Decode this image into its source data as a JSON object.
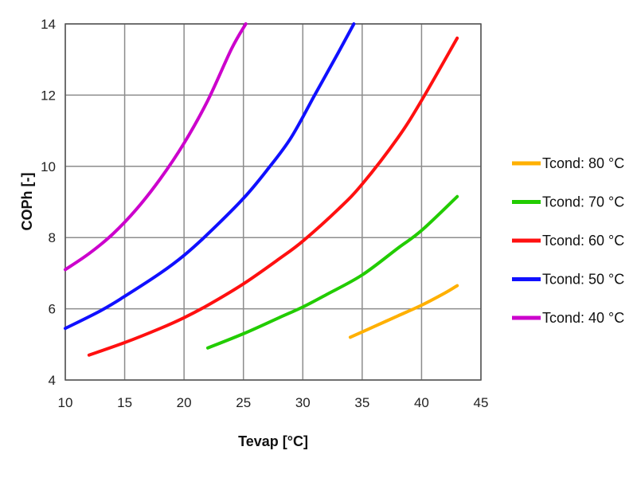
{
  "chart_data": {
    "type": "line",
    "title": "",
    "xlabel": "Tevap [°C]",
    "ylabel": "COPh  [-]",
    "xlim": [
      10,
      45
    ],
    "ylim": [
      4,
      14
    ],
    "xticks": [
      10,
      15,
      20,
      25,
      30,
      35,
      40,
      45
    ],
    "yticks": [
      4,
      6,
      8,
      10,
      12,
      14
    ],
    "grid": true,
    "legend_position": "right",
    "series": [
      {
        "name": "Tcond: 80 °C",
        "color": "#FFB000",
        "x": [
          34,
          36,
          38,
          40,
          42,
          43
        ],
        "y": [
          5.2,
          5.5,
          5.8,
          6.1,
          6.45,
          6.65
        ]
      },
      {
        "name": "Tcond: 70 °C",
        "color": "#22CC00",
        "x": [
          22,
          25,
          28,
          30,
          32,
          35,
          38,
          40,
          43
        ],
        "y": [
          4.9,
          5.3,
          5.75,
          6.05,
          6.4,
          6.95,
          7.7,
          8.2,
          9.15
        ]
      },
      {
        "name": "Tcond: 60 °C",
        "color": "#FF1010",
        "x": [
          12,
          15,
          18,
          20,
          22,
          25,
          28,
          30,
          33,
          35,
          38,
          40,
          43
        ],
        "y": [
          4.7,
          5.05,
          5.45,
          5.75,
          6.1,
          6.7,
          7.4,
          7.9,
          8.8,
          9.5,
          10.8,
          11.85,
          13.6
        ]
      },
      {
        "name": "Tcond: 50 °C",
        "color": "#1010FF",
        "x": [
          10,
          13,
          15,
          18,
          20,
          22,
          25,
          27,
          29,
          31,
          33,
          34.3
        ],
        "y": [
          5.45,
          5.95,
          6.35,
          7.0,
          7.5,
          8.1,
          9.1,
          9.9,
          10.8,
          12.0,
          13.2,
          14.0
        ]
      },
      {
        "name": "Tcond: 40 °C",
        "color": "#CC00CC",
        "x": [
          10,
          12,
          14,
          16,
          18,
          20,
          22,
          24,
          25.2
        ],
        "y": [
          7.1,
          7.55,
          8.1,
          8.8,
          9.65,
          10.65,
          11.85,
          13.3,
          14.0
        ]
      }
    ]
  }
}
